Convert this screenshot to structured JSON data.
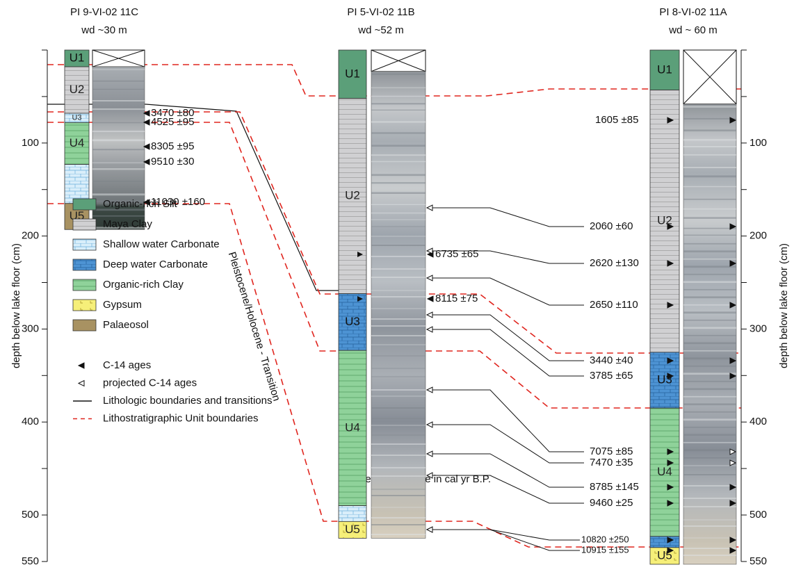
{
  "cores": [
    {
      "title": "PI 9-VI-02 11C",
      "water_depth": "wd ~30 m",
      "units": [
        "U1",
        "U2",
        "U3",
        "U4",
        "U5"
      ],
      "ages": [
        "3470 ±80",
        "4525 ±95",
        "8305 ±95",
        "9510 ±30",
        "11030 ±160"
      ]
    },
    {
      "title": "PI 5-VI-02 11B",
      "water_depth": "wd ~52 m",
      "units": [
        "U1",
        "U2",
        "U3",
        "U4",
        "U5"
      ],
      "ages": [
        "6735 ±65",
        "8115 ±75"
      ]
    },
    {
      "title": "PI 8-VI-02 11A",
      "water_depth": "wd ~ 60 m",
      "units": [
        "U1",
        "U2",
        "U3",
        "U4",
        "U5"
      ],
      "ages": [
        "1605  ±85",
        "2060 ±60",
        "2620 ±130",
        "2650 ±110",
        "3440 ±40",
        "3785 ±65",
        "7075 ±85",
        "7470 ±35",
        "8785 ±145",
        "9460 ±25",
        "10820 ±250",
        "10915 ±155"
      ]
    }
  ],
  "depth_axis": {
    "label": "depth below lake floor (cm)",
    "ticks": [
      100,
      200,
      300,
      400,
      500,
      550
    ]
  },
  "annotations": {
    "transition": "Pleistocene/Holocene - Transition",
    "note": "Note: all ages are in cal yr B.P."
  },
  "legend": [
    "Organic-rich Silt",
    "Maya Clay",
    "Shallow water Carbonate",
    "Deep water Carbonate",
    "Organic-rich Clay",
    "Gypsum",
    "Palaeosol",
    "C-14 ages",
    "projected C-14 ages",
    "Lithologic boundaries and transitions",
    "Lithostratigraphic Unit boundaries"
  ]
}
